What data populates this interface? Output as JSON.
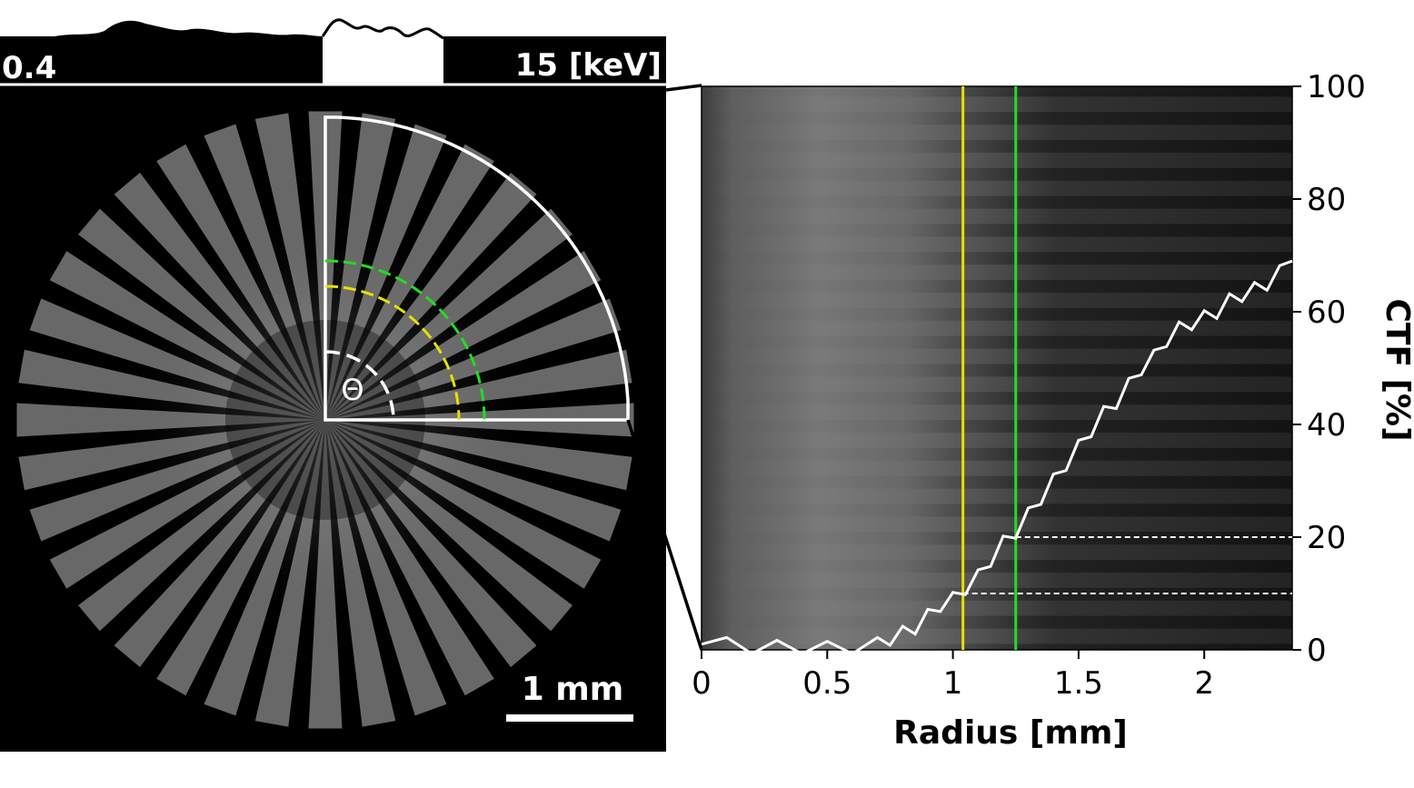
{
  "spectrum_bar": {
    "left_label": "0.4",
    "right_label": "15 [keV]"
  },
  "siemens_star": {
    "theta_label": "Θ",
    "scale_bar_label": "1 mm",
    "spokes": 36
  },
  "chart_data": {
    "type": "line",
    "title": "",
    "xlabel": "Radius [mm]",
    "ylabel": "CTF [%]",
    "xlim": [
      0,
      2.35
    ],
    "ylim": [
      0,
      100
    ],
    "x_ticks": [
      0,
      0.5,
      1,
      1.5,
      2
    ],
    "x_tick_labels": [
      "0",
      "0.5",
      "1",
      "1.5",
      "2"
    ],
    "y_ticks": [
      0,
      20,
      40,
      60,
      80,
      100
    ],
    "y_tick_labels": [
      "0",
      "20",
      "40",
      "60",
      "80",
      "100"
    ],
    "y_axis_side": "right",
    "grid": false,
    "series": [
      {
        "color": "#ffffff",
        "x": [
          0,
          0.1,
          0.2,
          0.3,
          0.4,
          0.5,
          0.6,
          0.7,
          0.75,
          0.8,
          0.85,
          0.9,
          0.95,
          1.0,
          1.05,
          1.1,
          1.15,
          1.2,
          1.25,
          1.3,
          1.35,
          1.4,
          1.45,
          1.5,
          1.55,
          1.6,
          1.65,
          1.7,
          1.75,
          1.8,
          1.85,
          1.9,
          1.95,
          2.0,
          2.05,
          2.1,
          2.15,
          2.2,
          2.25,
          2.3,
          2.35
        ],
        "y": [
          1,
          1,
          0.5,
          0.5,
          0.5,
          0.3,
          0.5,
          1,
          2,
          3,
          4,
          6,
          8,
          9,
          11,
          13,
          16,
          19,
          21,
          24,
          27,
          30,
          33,
          36,
          39,
          42,
          44,
          47,
          50,
          52,
          55,
          57,
          58,
          59,
          60,
          62,
          63,
          64,
          65,
          67,
          69
        ]
      }
    ],
    "vertical_markers": [
      {
        "x": 1.04,
        "color": "#e8e000"
      },
      {
        "x": 1.25,
        "color": "#22dd22"
      }
    ],
    "horizontal_markers": [
      {
        "y": 10,
        "x_start": 1.04,
        "color": "#ffffff",
        "style": "dashed"
      },
      {
        "y": 20,
        "x_start": 1.25,
        "color": "#ffffff",
        "style": "dashed"
      }
    ]
  }
}
